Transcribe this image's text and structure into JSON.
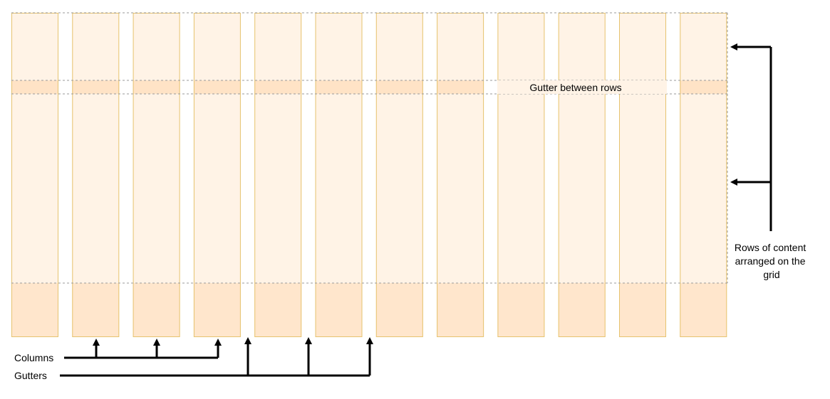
{
  "diagram": {
    "labels": {
      "gutter_between_rows": "Gutter between rows",
      "rows_of_content": [
        "Rows of content",
        "arranged on the",
        "grid"
      ],
      "columns": "Columns",
      "gutters": "Gutters"
    },
    "grid": {
      "column_count": 12
    },
    "colors": {
      "column_fill": "#fff3e6",
      "column_bottom_fill": "#ffe6cc",
      "column_stroke": "#e6c36f",
      "gutter_row_fill": "#ffe3c6",
      "dashed_line": "#999999",
      "arrow": "#000000"
    }
  }
}
